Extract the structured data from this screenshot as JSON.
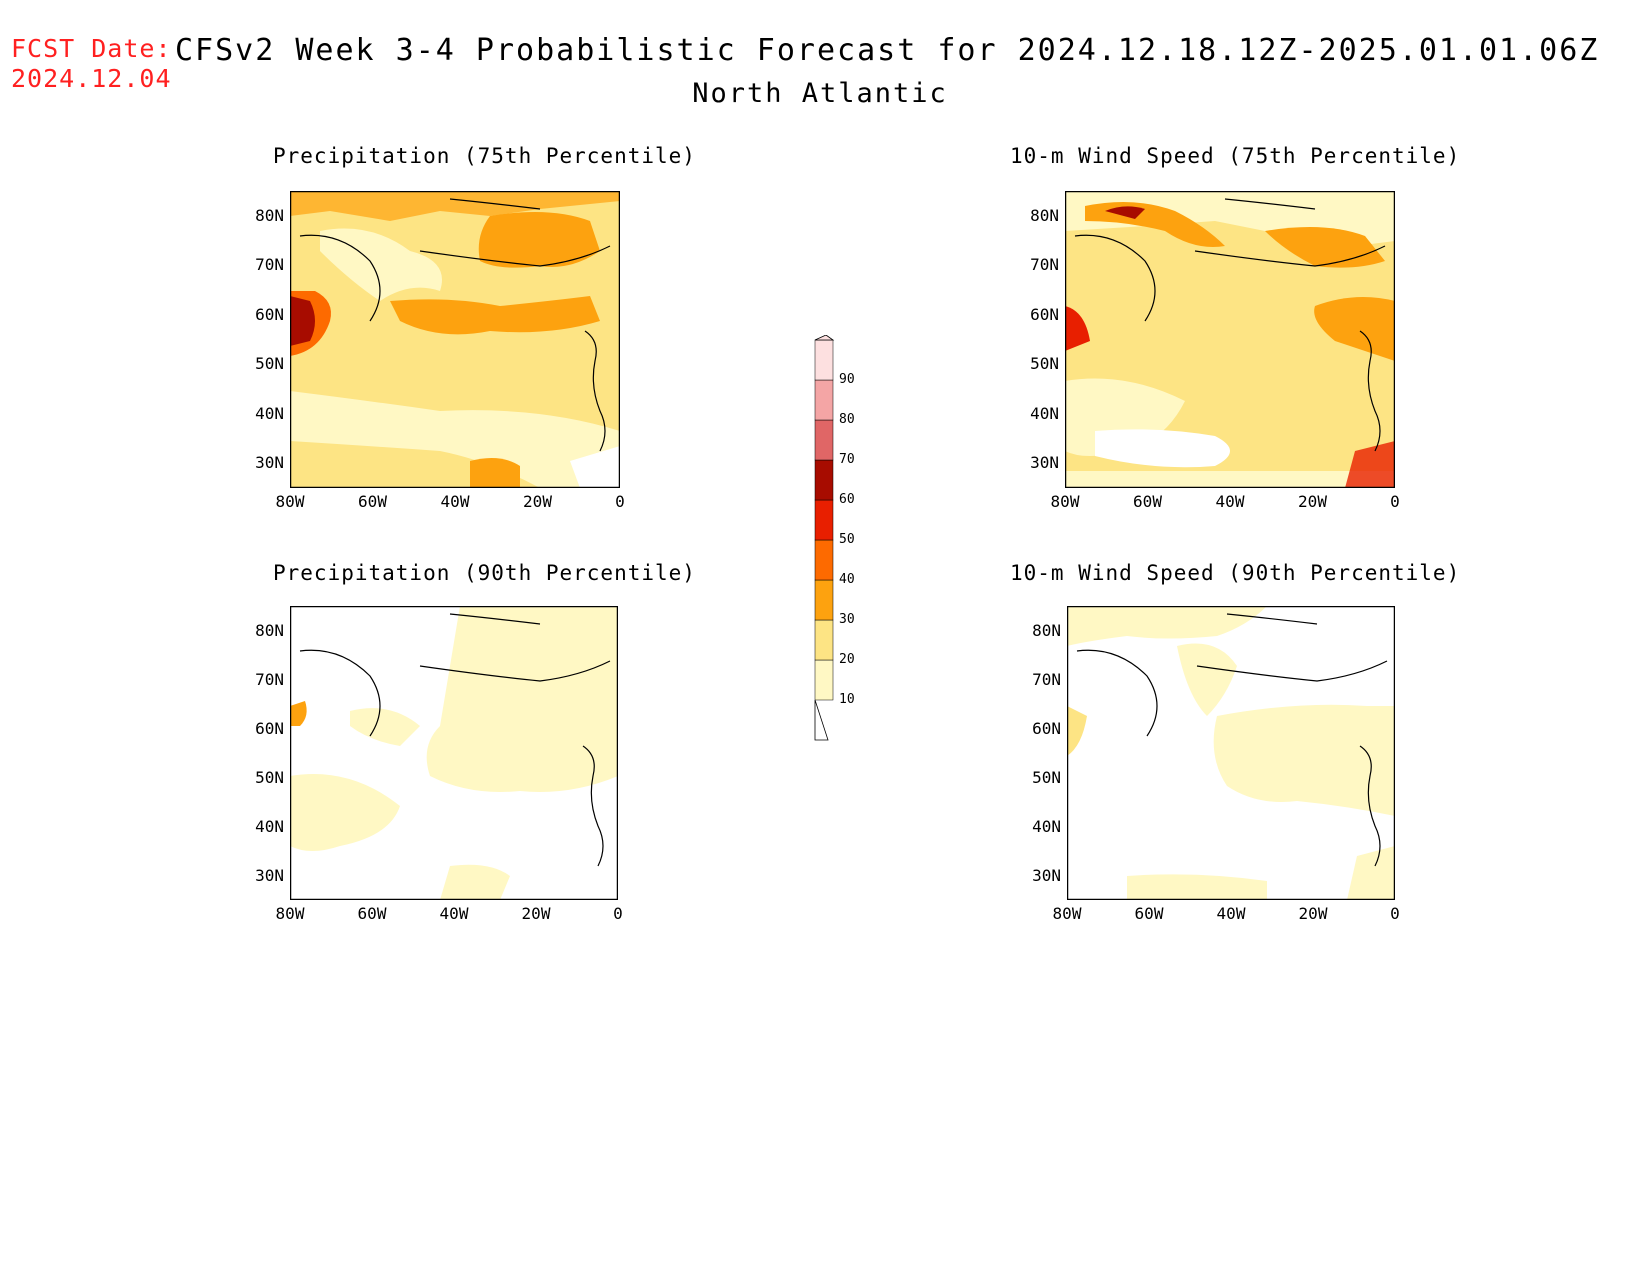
{
  "header": {
    "fcst_label": "FCST Date:",
    "fcst_date": "2024.12.04",
    "title": "CFSv2 Week 3-4 Probabilistic Forecast for 2024.12.18.12Z-2025.01.01.06Z",
    "region": "North Atlantic"
  },
  "axes": {
    "lat_labels": [
      "80N",
      "70N",
      "60N",
      "50N",
      "40N",
      "30N"
    ],
    "lon_labels": [
      "80W",
      "60W",
      "40W",
      "20W",
      "0"
    ]
  },
  "panels": [
    {
      "title": "Precipitation (75th Percentile)"
    },
    {
      "title": "10-m Wind Speed (75th Percentile)"
    },
    {
      "title": "Precipitation (90th Percentile)"
    },
    {
      "title": "10-m Wind Speed (90th Percentile)"
    }
  ],
  "colorbar": {
    "levels": [
      "10",
      "20",
      "30",
      "40",
      "50",
      "60",
      "70",
      "80",
      "90"
    ],
    "colors": [
      "#fff8c4",
      "#fde484",
      "#fda20f",
      "#fd6a00",
      "#e81f00",
      "#a70c00",
      "#e06666",
      "#f4a5a5",
      "#fde0e0"
    ]
  }
}
